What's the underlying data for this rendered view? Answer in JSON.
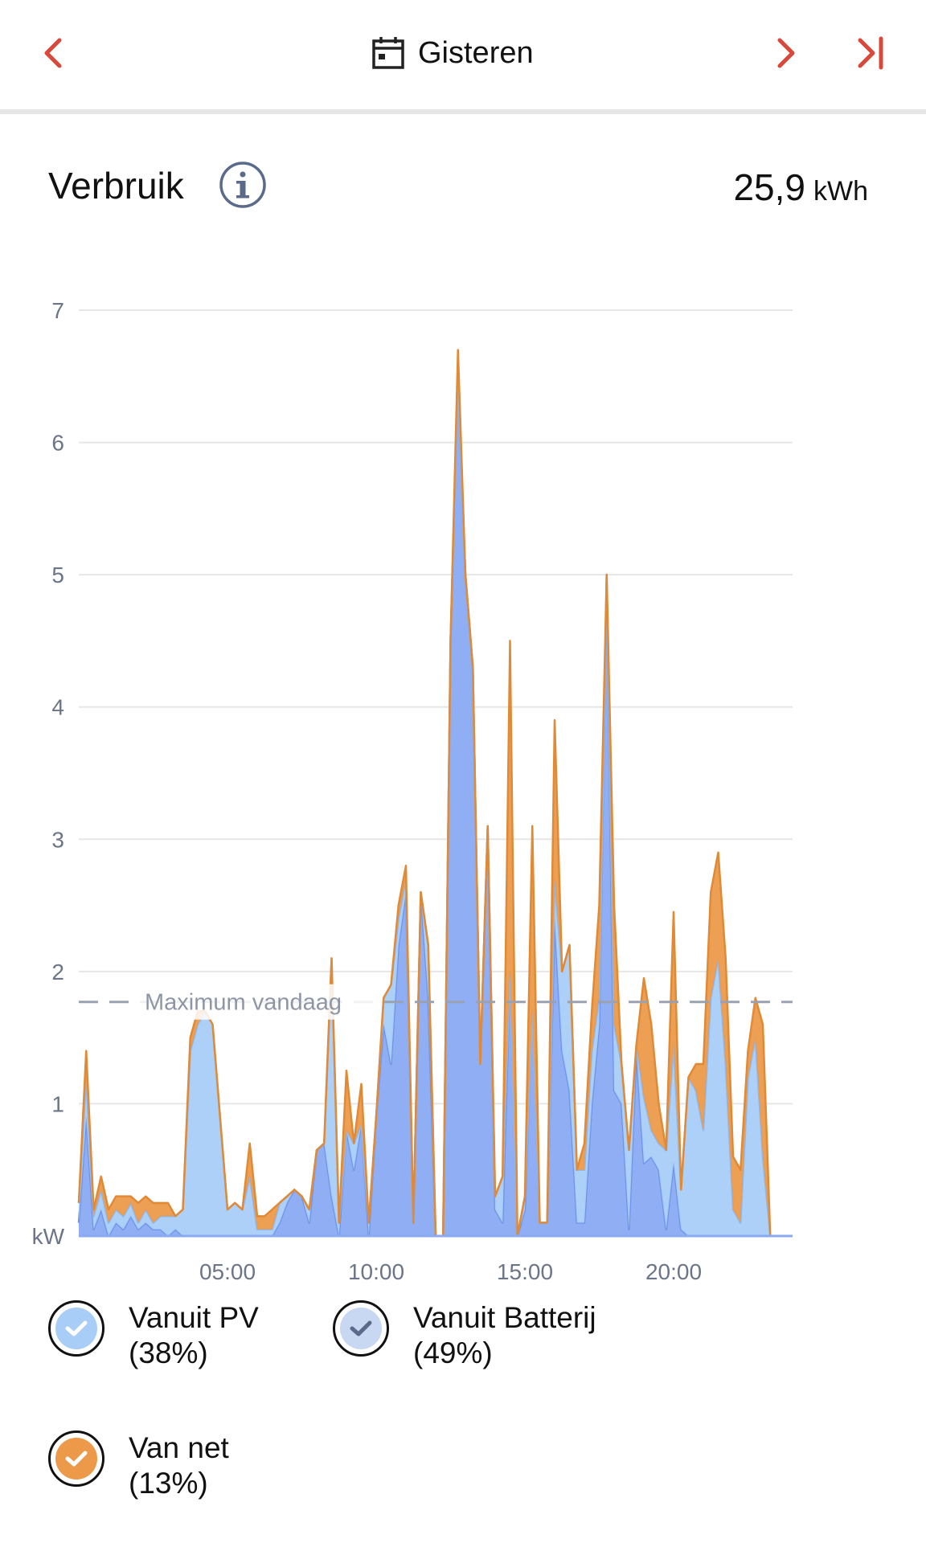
{
  "topbar": {
    "date_label": "Gisteren",
    "prev_icon": "chevron-left-icon",
    "next_icon": "chevron-right-icon",
    "last_icon": "skip-to-last-icon",
    "calendar_icon": "calendar-icon",
    "accent_color": "#d9483b"
  },
  "header": {
    "title": "Verbruik",
    "info_icon": "info-icon",
    "total_value": "25,9",
    "total_unit": "kWh"
  },
  "legend": [
    {
      "label": "Vanuit PV",
      "percent": "(38%)",
      "color": "#a8cdf7",
      "check_color": "#ffffff"
    },
    {
      "label": "Vanuit Batterij",
      "percent": "(49%)",
      "color": "#c9d8f2",
      "check_color": "#5a6a8a"
    },
    {
      "label": "Van net",
      "percent": "(13%)",
      "color": "#ec9a4a",
      "check_color": "#ffffff"
    }
  ],
  "chart_data": {
    "type": "area",
    "stacked": true,
    "ylabel": "kW",
    "yticks": [
      "1",
      "2",
      "3",
      "4",
      "5",
      "6",
      "7"
    ],
    "ylim": [
      0,
      7
    ],
    "xlim": [
      0,
      24
    ],
    "xticks": [
      {
        "value": 5,
        "label": "05:00"
      },
      {
        "value": 10,
        "label": "10:00"
      },
      {
        "value": 15,
        "label": "15:00"
      },
      {
        "value": 20,
        "label": "20:00"
      }
    ],
    "grid": true,
    "reference_line": {
      "label": "Maximum vandaag",
      "value": 1.77
    },
    "x": [
      0.0,
      0.25,
      0.5,
      0.75,
      1.0,
      1.25,
      1.5,
      1.75,
      2.0,
      2.25,
      2.5,
      2.75,
      3.0,
      3.25,
      3.5,
      3.75,
      4.0,
      4.25,
      4.5,
      4.75,
      5.0,
      5.25,
      5.5,
      5.75,
      6.0,
      6.25,
      6.5,
      6.75,
      7.0,
      7.25,
      7.5,
      7.75,
      8.0,
      8.25,
      8.5,
      8.75,
      9.0,
      9.25,
      9.5,
      9.75,
      10.0,
      10.25,
      10.5,
      10.75,
      11.0,
      11.25,
      11.5,
      11.75,
      12.0,
      12.25,
      12.5,
      12.75,
      13.0,
      13.25,
      13.5,
      13.75,
      14.0,
      14.25,
      14.5,
      14.75,
      15.0,
      15.25,
      15.5,
      15.75,
      16.0,
      16.25,
      16.5,
      16.75,
      17.0,
      17.25,
      17.5,
      17.75,
      18.0,
      18.25,
      18.5,
      18.75,
      19.0,
      19.25,
      19.5,
      19.75,
      20.0,
      20.25,
      20.5,
      20.75,
      21.0,
      21.25,
      21.5,
      21.75,
      22.0,
      22.25,
      22.5,
      22.75,
      23.0,
      23.25,
      23.5,
      23.75,
      24.0
    ],
    "series": [
      {
        "name": "Vanuit Batterij",
        "color": "#8aaaf2",
        "values": [
          0.1,
          0.9,
          0.05,
          0.2,
          0.0,
          0.1,
          0.05,
          0.15,
          0.05,
          0.1,
          0.05,
          0.05,
          0.0,
          0.05,
          0.0,
          0.0,
          0.0,
          0.0,
          0.0,
          0.0,
          0.0,
          0.0,
          0.0,
          0.0,
          0.0,
          0.0,
          0.0,
          0.1,
          0.25,
          0.35,
          0.3,
          0.1,
          0.65,
          0.7,
          0.3,
          0.0,
          0.8,
          0.5,
          0.85,
          0.0,
          0.9,
          1.6,
          1.3,
          2.2,
          2.6,
          0.1,
          2.6,
          1.8,
          0.0,
          0.0,
          4.5,
          6.5,
          5.0,
          4.3,
          1.3,
          3.1,
          0.2,
          0.1,
          2.0,
          0.0,
          0.2,
          1.7,
          0.1,
          0.1,
          2.4,
          1.4,
          1.1,
          0.1,
          0.1,
          1.0,
          1.6,
          5.0,
          1.1,
          1.0,
          0.05,
          1.4,
          0.55,
          0.6,
          0.5,
          0.05,
          0.55,
          0.05,
          0.0,
          0.0,
          0.0,
          0.0,
          0.0,
          0.0,
          0.0,
          0.0,
          0.0,
          0.0,
          0.0,
          0.0,
          0.0,
          0.0,
          0.0
        ]
      },
      {
        "name": "Vanuit PV",
        "color": "#a8cdf7",
        "values": [
          0.15,
          0.3,
          0.1,
          0.15,
          0.1,
          0.1,
          0.1,
          0.1,
          0.05,
          0.1,
          0.05,
          0.1,
          0.15,
          0.1,
          0.2,
          1.4,
          1.6,
          1.7,
          1.6,
          0.9,
          0.2,
          0.25,
          0.2,
          0.45,
          0.05,
          0.05,
          0.05,
          0.15,
          0.05,
          0.0,
          0.0,
          0.1,
          0.0,
          0.0,
          1.8,
          0.1,
          0.0,
          0.2,
          0.0,
          0.1,
          0.0,
          0.2,
          0.6,
          0.2,
          0.1,
          0.0,
          0.0,
          0.4,
          0.0,
          0.0,
          0.0,
          0.0,
          0.0,
          0.0,
          0.0,
          0.0,
          0.1,
          0.35,
          0.0,
          0.0,
          0.1,
          0.0,
          0.0,
          0.0,
          0.3,
          0.6,
          1.1,
          0.4,
          0.4,
          0.4,
          0.2,
          0.0,
          0.5,
          0.3,
          0.6,
          0.05,
          0.5,
          0.2,
          0.2,
          0.6,
          0.9,
          0.3,
          1.2,
          1.1,
          0.8,
          1.8,
          2.1,
          1.3,
          0.2,
          0.1,
          1.2,
          1.5,
          0.6,
          0.0,
          0.0,
          0.0,
          0.0
        ]
      },
      {
        "name": "Van net",
        "color": "#ec9a4a",
        "values": [
          0.0,
          0.2,
          0.05,
          0.1,
          0.1,
          0.1,
          0.15,
          0.05,
          0.15,
          0.1,
          0.15,
          0.1,
          0.1,
          0.0,
          0.0,
          0.1,
          0.1,
          0.0,
          0.0,
          0.0,
          0.0,
          0.0,
          0.0,
          0.25,
          0.1,
          0.1,
          0.15,
          0.0,
          0.0,
          0.0,
          0.0,
          0.0,
          0.0,
          0.0,
          0.0,
          0.0,
          0.45,
          0.0,
          0.3,
          0.0,
          0.0,
          0.0,
          0.0,
          0.1,
          0.1,
          0.0,
          0.0,
          0.0,
          0.0,
          0.0,
          0.0,
          0.2,
          0.0,
          0.0,
          0.0,
          0.0,
          0.0,
          0.0,
          2.5,
          0.0,
          0.0,
          1.4,
          0.0,
          0.0,
          1.2,
          0.0,
          0.0,
          0.0,
          0.2,
          0.3,
          0.7,
          0.0,
          0.9,
          0.0,
          0.0,
          0.0,
          0.9,
          0.8,
          0.3,
          0.0,
          1.0,
          0.0,
          0.0,
          0.2,
          0.5,
          0.8,
          0.8,
          0.8,
          0.4,
          0.4,
          0.2,
          0.3,
          1.0,
          0.0,
          0.0,
          0.0,
          0.0
        ]
      }
    ]
  }
}
